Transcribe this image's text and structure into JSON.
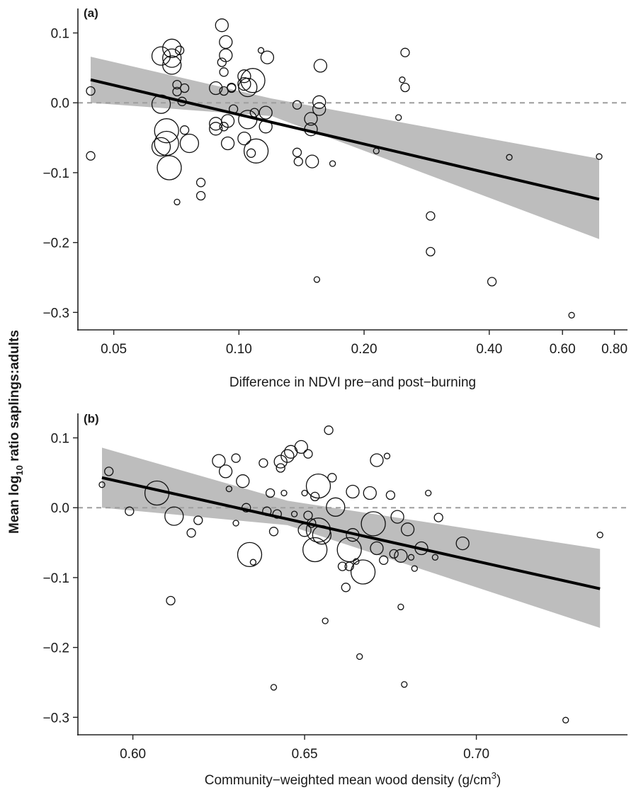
{
  "y_label": {
    "pre": "Mean log",
    "sub": "10",
    "post": " ratio saplings:adults"
  },
  "chart_data": [
    {
      "type": "scatter",
      "panel_label": "(a)",
      "xlabel": "Difference in NDVI pre−and post−burning",
      "x_scale": "log",
      "xlim": [
        0.041,
        0.86
      ],
      "ylim": [
        -0.325,
        0.135
      ],
      "x_ticks": [
        0.05,
        0.1,
        0.2,
        0.4,
        0.6,
        0.8
      ],
      "x_tick_labels": [
        "0.05",
        "0.10",
        "0.20",
        "0.40",
        "0.60",
        "0.80"
      ],
      "y_ticks": [
        0.1,
        0.0,
        -0.1,
        -0.2,
        -0.3
      ],
      "y_tick_labels": [
        "0.1",
        "0.0",
        "−0.1",
        "−0.2",
        "−0.3"
      ],
      "reference_line_y": 0,
      "fit": {
        "x": [
          0.044,
          0.735
        ],
        "y": [
          0.033,
          -0.138
        ]
      },
      "ci_band": {
        "x": [
          0.044,
          0.12,
          0.735
        ],
        "upper": [
          0.066,
          0.006,
          -0.08
        ],
        "lower": [
          0.0,
          -0.019,
          -0.195
        ]
      },
      "points": [
        {
          "x": 0.044,
          "y": 0.017,
          "size": 1
        },
        {
          "x": 0.044,
          "y": -0.076,
          "size": 1
        },
        {
          "x": 0.065,
          "y": 0.067,
          "size": 3
        },
        {
          "x": 0.065,
          "y": -0.002,
          "size": 3
        },
        {
          "x": 0.065,
          "y": -0.063,
          "size": 3
        },
        {
          "x": 0.067,
          "y": -0.04,
          "size": 4
        },
        {
          "x": 0.067,
          "y": -0.058,
          "size": 4
        },
        {
          "x": 0.068,
          "y": -0.093,
          "size": 4
        },
        {
          "x": 0.069,
          "y": 0.078,
          "size": 3
        },
        {
          "x": 0.069,
          "y": 0.064,
          "size": 3
        },
        {
          "x": 0.069,
          "y": 0.054,
          "size": 3
        },
        {
          "x": 0.071,
          "y": 0.026,
          "size": 1
        },
        {
          "x": 0.071,
          "y": 0.016,
          "size": 1
        },
        {
          "x": 0.071,
          "y": -0.142,
          "size": 0
        },
        {
          "x": 0.072,
          "y": 0.075,
          "size": 1
        },
        {
          "x": 0.073,
          "y": 0.002,
          "size": 1
        },
        {
          "x": 0.074,
          "y": 0.021,
          "size": 1
        },
        {
          "x": 0.074,
          "y": -0.039,
          "size": 1
        },
        {
          "x": 0.076,
          "y": -0.058,
          "size": 3
        },
        {
          "x": 0.081,
          "y": -0.114,
          "size": 1
        },
        {
          "x": 0.081,
          "y": -0.133,
          "size": 1
        },
        {
          "x": 0.088,
          "y": 0.021,
          "size": 2
        },
        {
          "x": 0.088,
          "y": -0.03,
          "size": 2
        },
        {
          "x": 0.088,
          "y": -0.037,
          "size": 2
        },
        {
          "x": 0.091,
          "y": 0.111,
          "size": 2
        },
        {
          "x": 0.091,
          "y": 0.058,
          "size": 1
        },
        {
          "x": 0.092,
          "y": 0.044,
          "size": 1
        },
        {
          "x": 0.092,
          "y": 0.017,
          "size": 1
        },
        {
          "x": 0.092,
          "y": -0.034,
          "size": 1
        },
        {
          "x": 0.093,
          "y": 0.087,
          "size": 2
        },
        {
          "x": 0.093,
          "y": 0.068,
          "size": 2
        },
        {
          "x": 0.094,
          "y": -0.026,
          "size": 2
        },
        {
          "x": 0.094,
          "y": -0.058,
          "size": 2
        },
        {
          "x": 0.096,
          "y": 0.022,
          "size": 1
        },
        {
          "x": 0.096,
          "y": 0.021,
          "size": 1
        },
        {
          "x": 0.097,
          "y": -0.009,
          "size": 1
        },
        {
          "x": 0.103,
          "y": 0.038,
          "size": 2
        },
        {
          "x": 0.103,
          "y": 0.027,
          "size": 2
        },
        {
          "x": 0.103,
          "y": -0.051,
          "size": 2
        },
        {
          "x": 0.105,
          "y": 0.022,
          "size": 3
        },
        {
          "x": 0.105,
          "y": -0.024,
          "size": 3
        },
        {
          "x": 0.107,
          "y": -0.072,
          "size": 1
        },
        {
          "x": 0.108,
          "y": 0.032,
          "size": 4
        },
        {
          "x": 0.109,
          "y": -0.014,
          "size": 1
        },
        {
          "x": 0.11,
          "y": -0.069,
          "size": 4
        },
        {
          "x": 0.113,
          "y": 0.075,
          "size": 0
        },
        {
          "x": 0.116,
          "y": -0.014,
          "size": 2
        },
        {
          "x": 0.116,
          "y": -0.034,
          "size": 2
        },
        {
          "x": 0.117,
          "y": 0.065,
          "size": 2
        },
        {
          "x": 0.138,
          "y": -0.003,
          "size": 1
        },
        {
          "x": 0.138,
          "y": -0.071,
          "size": 1
        },
        {
          "x": 0.139,
          "y": -0.084,
          "size": 1
        },
        {
          "x": 0.149,
          "y": -0.023,
          "size": 2
        },
        {
          "x": 0.149,
          "y": -0.038,
          "size": 2
        },
        {
          "x": 0.15,
          "y": -0.084,
          "size": 2
        },
        {
          "x": 0.156,
          "y": 0.001,
          "size": 2
        },
        {
          "x": 0.156,
          "y": -0.009,
          "size": 2
        },
        {
          "x": 0.157,
          "y": 0.053,
          "size": 2
        },
        {
          "x": 0.154,
          "y": -0.253,
          "size": 0
        },
        {
          "x": 0.168,
          "y": -0.087,
          "size": 0
        },
        {
          "x": 0.214,
          "y": -0.069,
          "size": 0
        },
        {
          "x": 0.242,
          "y": -0.021,
          "size": 0
        },
        {
          "x": 0.247,
          "y": 0.033,
          "size": 0
        },
        {
          "x": 0.251,
          "y": 0.072,
          "size": 1
        },
        {
          "x": 0.251,
          "y": 0.022,
          "size": 1
        },
        {
          "x": 0.289,
          "y": -0.162,
          "size": 1
        },
        {
          "x": 0.289,
          "y": -0.213,
          "size": 1
        },
        {
          "x": 0.406,
          "y": -0.256,
          "size": 1
        },
        {
          "x": 0.447,
          "y": -0.078,
          "size": 0
        },
        {
          "x": 0.631,
          "y": -0.304,
          "size": 0
        },
        {
          "x": 0.735,
          "y": -0.077,
          "size": 0
        }
      ]
    },
    {
      "type": "scatter",
      "panel_label": "(b)",
      "xlabel": "Community−weighted mean wood density (g/cm",
      "xlabel_sup": "3",
      "xlabel_post": ")",
      "x_scale": "linear",
      "xlim": [
        0.584,
        0.744
      ],
      "ylim": [
        -0.325,
        0.135
      ],
      "x_ticks": [
        0.6,
        0.65,
        0.7
      ],
      "x_tick_labels": [
        "0.60",
        "0.65",
        "0.70"
      ],
      "y_ticks": [
        0.1,
        0.0,
        -0.1,
        -0.2,
        -0.3
      ],
      "y_tick_labels": [
        "0.1",
        "0.0",
        "−0.1",
        "−0.2",
        "−0.3"
      ],
      "reference_line_y": 0,
      "fit": {
        "x": [
          0.591,
          0.736
        ],
        "y": [
          0.043,
          -0.116
        ]
      },
      "ci_band": {
        "x": [
          0.591,
          0.645,
          0.736
        ],
        "upper": [
          0.086,
          0.01,
          -0.059
        ],
        "lower": [
          0.0,
          -0.025,
          -0.172
        ]
      },
      "points": [
        {
          "x": 0.591,
          "y": 0.033,
          "size": 0
        },
        {
          "x": 0.593,
          "y": 0.052,
          "size": 1
        },
        {
          "x": 0.599,
          "y": -0.005,
          "size": 1
        },
        {
          "x": 0.607,
          "y": 0.021,
          "size": 4
        },
        {
          "x": 0.611,
          "y": -0.133,
          "size": 1
        },
        {
          "x": 0.612,
          "y": -0.012,
          "size": 3
        },
        {
          "x": 0.617,
          "y": -0.036,
          "size": 1
        },
        {
          "x": 0.619,
          "y": -0.018,
          "size": 1
        },
        {
          "x": 0.625,
          "y": 0.067,
          "size": 2
        },
        {
          "x": 0.627,
          "y": 0.052,
          "size": 2
        },
        {
          "x": 0.628,
          "y": 0.027,
          "size": 0
        },
        {
          "x": 0.63,
          "y": 0.071,
          "size": 1
        },
        {
          "x": 0.63,
          "y": -0.022,
          "size": 0
        },
        {
          "x": 0.632,
          "y": 0.038,
          "size": 2
        },
        {
          "x": 0.633,
          "y": 0.0,
          "size": 1
        },
        {
          "x": 0.634,
          "y": -0.067,
          "size": 4
        },
        {
          "x": 0.635,
          "y": -0.078,
          "size": 0
        },
        {
          "x": 0.638,
          "y": 0.064,
          "size": 1
        },
        {
          "x": 0.639,
          "y": -0.005,
          "size": 1
        },
        {
          "x": 0.64,
          "y": 0.021,
          "size": 1
        },
        {
          "x": 0.641,
          "y": -0.034,
          "size": 1
        },
        {
          "x": 0.641,
          "y": -0.257,
          "size": 0
        },
        {
          "x": 0.642,
          "y": -0.009,
          "size": 1
        },
        {
          "x": 0.643,
          "y": 0.066,
          "size": 2
        },
        {
          "x": 0.643,
          "y": 0.057,
          "size": 1
        },
        {
          "x": 0.644,
          "y": 0.021,
          "size": 0
        },
        {
          "x": 0.645,
          "y": 0.074,
          "size": 2
        },
        {
          "x": 0.646,
          "y": 0.08,
          "size": 2
        },
        {
          "x": 0.647,
          "y": -0.009,
          "size": 0
        },
        {
          "x": 0.649,
          "y": 0.087,
          "size": 2
        },
        {
          "x": 0.65,
          "y": 0.021,
          "size": 0
        },
        {
          "x": 0.65,
          "y": -0.032,
          "size": 2
        },
        {
          "x": 0.651,
          "y": 0.077,
          "size": 1
        },
        {
          "x": 0.651,
          "y": -0.011,
          "size": 1
        },
        {
          "x": 0.652,
          "y": -0.022,
          "size": 1
        },
        {
          "x": 0.653,
          "y": 0.016,
          "size": 1
        },
        {
          "x": 0.653,
          "y": -0.06,
          "size": 4
        },
        {
          "x": 0.654,
          "y": -0.032,
          "size": 4
        },
        {
          "x": 0.654,
          "y": 0.031,
          "size": 4
        },
        {
          "x": 0.655,
          "y": -0.039,
          "size": 3
        },
        {
          "x": 0.656,
          "y": -0.162,
          "size": 0
        },
        {
          "x": 0.657,
          "y": 0.111,
          "size": 1
        },
        {
          "x": 0.658,
          "y": 0.043,
          "size": 1
        },
        {
          "x": 0.659,
          "y": 0.001,
          "size": 3
        },
        {
          "x": 0.661,
          "y": -0.084,
          "size": 1
        },
        {
          "x": 0.662,
          "y": -0.114,
          "size": 1
        },
        {
          "x": 0.663,
          "y": -0.084,
          "size": 1
        },
        {
          "x": 0.663,
          "y": -0.06,
          "size": 4
        },
        {
          "x": 0.664,
          "y": 0.023,
          "size": 2
        },
        {
          "x": 0.664,
          "y": -0.039,
          "size": 2
        },
        {
          "x": 0.665,
          "y": -0.077,
          "size": 0
        },
        {
          "x": 0.666,
          "y": -0.213,
          "size": 0
        },
        {
          "x": 0.667,
          "y": -0.092,
          "size": 4
        },
        {
          "x": 0.669,
          "y": 0.021,
          "size": 2
        },
        {
          "x": 0.67,
          "y": -0.023,
          "size": 4
        },
        {
          "x": 0.671,
          "y": -0.058,
          "size": 2
        },
        {
          "x": 0.671,
          "y": 0.068,
          "size": 2
        },
        {
          "x": 0.673,
          "y": -0.075,
          "size": 1
        },
        {
          "x": 0.674,
          "y": 0.074,
          "size": 0
        },
        {
          "x": 0.675,
          "y": 0.018,
          "size": 1
        },
        {
          "x": 0.676,
          "y": -0.066,
          "size": 1
        },
        {
          "x": 0.677,
          "y": -0.013,
          "size": 2
        },
        {
          "x": 0.678,
          "y": -0.142,
          "size": 0
        },
        {
          "x": 0.678,
          "y": -0.069,
          "size": 2
        },
        {
          "x": 0.679,
          "y": -0.253,
          "size": 0
        },
        {
          "x": 0.68,
          "y": -0.031,
          "size": 2
        },
        {
          "x": 0.681,
          "y": -0.071,
          "size": 0
        },
        {
          "x": 0.682,
          "y": -0.087,
          "size": 0
        },
        {
          "x": 0.684,
          "y": -0.058,
          "size": 2
        },
        {
          "x": 0.686,
          "y": 0.021,
          "size": 0
        },
        {
          "x": 0.688,
          "y": -0.071,
          "size": 0
        },
        {
          "x": 0.689,
          "y": -0.014,
          "size": 1
        },
        {
          "x": 0.696,
          "y": -0.051,
          "size": 2
        },
        {
          "x": 0.726,
          "y": -0.304,
          "size": 0
        },
        {
          "x": 0.736,
          "y": -0.039,
          "size": 0
        }
      ]
    }
  ]
}
